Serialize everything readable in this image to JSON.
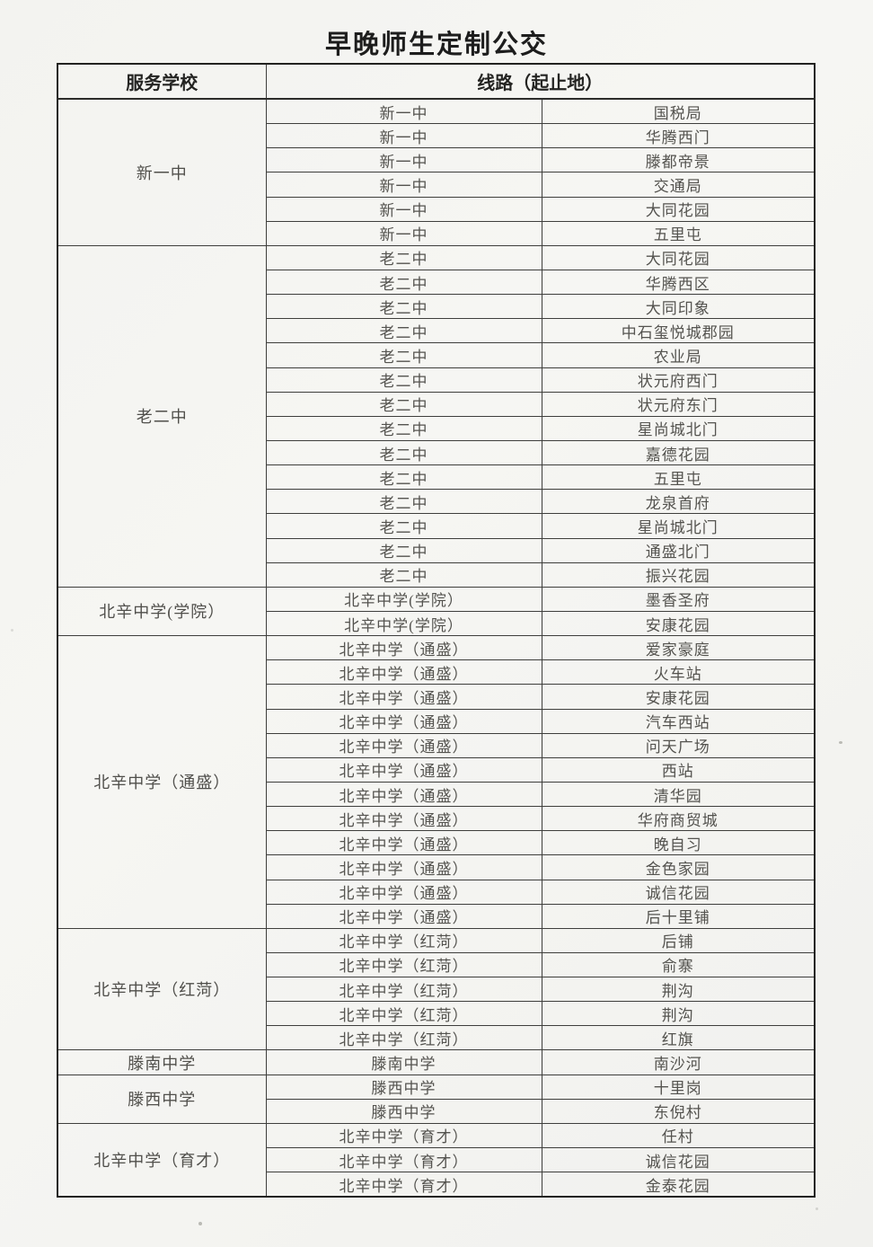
{
  "page": {
    "title": "早晚师生定制公交"
  },
  "table": {
    "header": {
      "school": "服务学校",
      "route": "线路（起止地）"
    },
    "sections": [
      {
        "school": "新一中",
        "rows": [
          {
            "origin": "新一中",
            "destination": "国税局"
          },
          {
            "origin": "新一中",
            "destination": "华腾西门"
          },
          {
            "origin": "新一中",
            "destination": "滕都帝景"
          },
          {
            "origin": "新一中",
            "destination": "交通局"
          },
          {
            "origin": "新一中",
            "destination": "大同花园"
          },
          {
            "origin": "新一中",
            "destination": "五里屯"
          }
        ]
      },
      {
        "school": "老二中",
        "rows": [
          {
            "origin": "老二中",
            "destination": "大同花园"
          },
          {
            "origin": "老二中",
            "destination": "华腾西区"
          },
          {
            "origin": "老二中",
            "destination": "大同印象"
          },
          {
            "origin": "老二中",
            "destination": "中石玺悦城郡园"
          },
          {
            "origin": "老二中",
            "destination": "农业局"
          },
          {
            "origin": "老二中",
            "destination": "状元府西门"
          },
          {
            "origin": "老二中",
            "destination": "状元府东门"
          },
          {
            "origin": "老二中",
            "destination": "星尚城北门"
          },
          {
            "origin": "老二中",
            "destination": "嘉德花园"
          },
          {
            "origin": "老二中",
            "destination": "五里屯"
          },
          {
            "origin": "老二中",
            "destination": "龙泉首府"
          },
          {
            "origin": "老二中",
            "destination": "星尚城北门"
          },
          {
            "origin": "老二中",
            "destination": "通盛北门"
          },
          {
            "origin": "老二中",
            "destination": "振兴花园"
          }
        ]
      },
      {
        "school": "北辛中学(学院）",
        "rows": [
          {
            "origin": "北辛中学(学院）",
            "destination": "墨香圣府"
          },
          {
            "origin": "北辛中学(学院）",
            "destination": "安康花园"
          }
        ]
      },
      {
        "school": "北辛中学（通盛）",
        "rows": [
          {
            "origin": "北辛中学（通盛）",
            "destination": "爱家豪庭"
          },
          {
            "origin": "北辛中学（通盛）",
            "destination": "火车站"
          },
          {
            "origin": "北辛中学（通盛）",
            "destination": "安康花园"
          },
          {
            "origin": "北辛中学（通盛）",
            "destination": "汽车西站"
          },
          {
            "origin": "北辛中学（通盛）",
            "destination": "问天广场"
          },
          {
            "origin": "北辛中学（通盛）",
            "destination": "西站"
          },
          {
            "origin": "北辛中学（通盛）",
            "destination": "清华园"
          },
          {
            "origin": "北辛中学（通盛）",
            "destination": "华府商贸城"
          },
          {
            "origin": "北辛中学（通盛）",
            "destination": "晚自习"
          },
          {
            "origin": "北辛中学（通盛）",
            "destination": "金色家园"
          },
          {
            "origin": "北辛中学（通盛）",
            "destination": "诚信花园"
          },
          {
            "origin": "北辛中学（通盛）",
            "destination": "后十里铺"
          }
        ]
      },
      {
        "school": "北辛中学（红菏）",
        "rows": [
          {
            "origin": "北辛中学（红菏）",
            "destination": "后铺"
          },
          {
            "origin": "北辛中学（红菏）",
            "destination": "俞寨"
          },
          {
            "origin": "北辛中学（红菏）",
            "destination": "荆沟"
          },
          {
            "origin": "北辛中学（红菏）",
            "destination": "荆沟"
          },
          {
            "origin": "北辛中学（红菏）",
            "destination": "红旗"
          }
        ]
      },
      {
        "school": "滕南中学",
        "rows": [
          {
            "origin": "滕南中学",
            "destination": "南沙河"
          }
        ]
      },
      {
        "school": "滕西中学",
        "rows": [
          {
            "origin": "滕西中学",
            "destination": "十里岗"
          },
          {
            "origin": "滕西中学",
            "destination": "东倪村"
          }
        ]
      },
      {
        "school": "北辛中学（育才）",
        "rows": [
          {
            "origin": "北辛中学（育才）",
            "destination": "任村"
          },
          {
            "origin": "北辛中学（育才）",
            "destination": "诚信花园"
          },
          {
            "origin": "北辛中学（育才）",
            "destination": "金泰花园"
          }
        ]
      }
    ]
  }
}
